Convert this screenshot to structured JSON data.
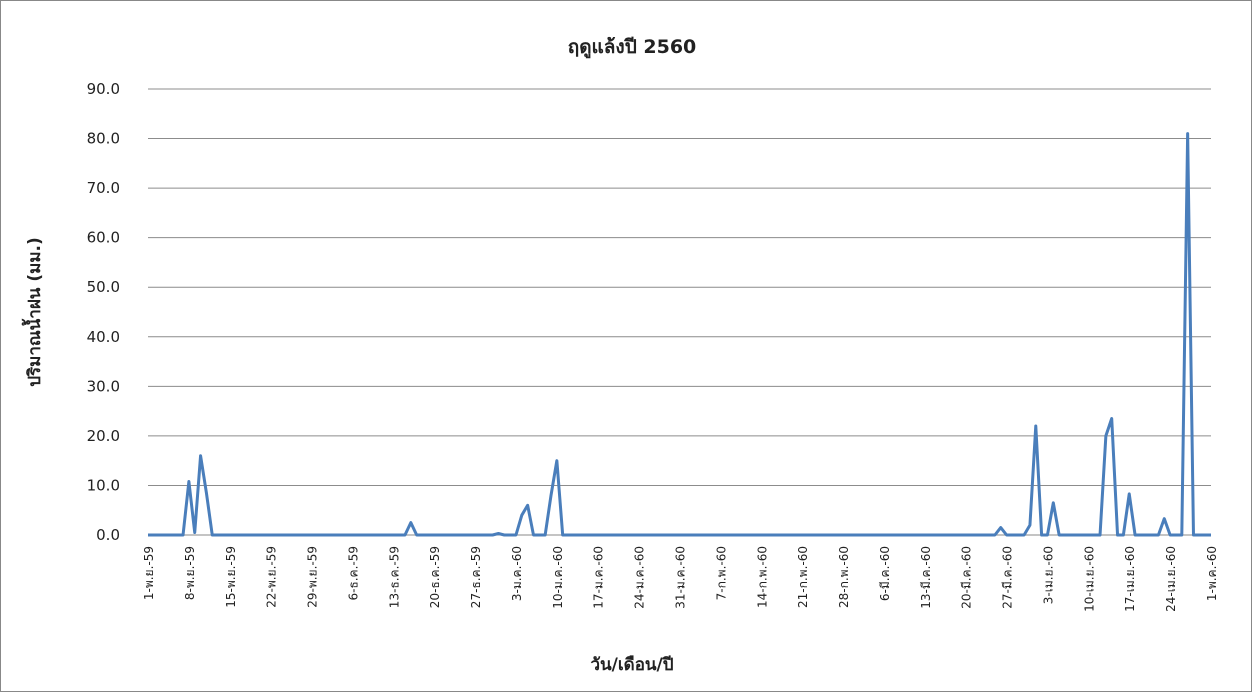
{
  "chart_data": {
    "type": "line",
    "title": "ฤดูแล้งปี 2560",
    "xlabel": "วัน/เดือน/ปี",
    "ylabel": "ปริมาณน้ำฝน (มม.)",
    "categories": [
      "1-พ.ย.-59",
      null,
      null,
      null,
      null,
      null,
      null,
      "8-พ.ย.-59",
      null,
      null,
      null,
      null,
      null,
      null,
      "15-พ.ย.-59",
      null,
      null,
      null,
      null,
      null,
      null,
      "22-พ.ย.-59",
      null,
      null,
      null,
      null,
      null,
      null,
      "29-พ.ย.-59",
      null,
      null,
      null,
      null,
      null,
      null,
      "6-ธ.ค.-59",
      null,
      null,
      null,
      null,
      null,
      null,
      "13-ธ.ค.-59",
      null,
      null,
      null,
      null,
      null,
      null,
      "20-ธ.ค.-59",
      null,
      null,
      null,
      null,
      null,
      null,
      "27-ธ.ค.-59",
      null,
      null,
      null,
      null,
      null,
      null,
      "3-ม.ค.-60",
      null,
      null,
      null,
      null,
      null,
      null,
      "10-ม.ค.-60",
      null,
      null,
      null,
      null,
      null,
      null,
      "17-ม.ค.-60",
      null,
      null,
      null,
      null,
      null,
      null,
      "24-ม.ค.-60",
      null,
      null,
      null,
      null,
      null,
      null,
      "31-ม.ค.-60",
      null,
      null,
      null,
      null,
      null,
      null,
      "7-ก.พ.-60",
      null,
      null,
      null,
      null,
      null,
      null,
      "14-ก.พ.-60",
      null,
      null,
      null,
      null,
      null,
      null,
      "21-ก.พ.-60",
      null,
      null,
      null,
      null,
      null,
      null,
      "28-ก.พ.-60",
      null,
      null,
      null,
      null,
      null,
      null,
      "6-มี.ค.-60",
      null,
      null,
      null,
      null,
      null,
      null,
      "13-มี.ค.-60",
      null,
      null,
      null,
      null,
      null,
      null,
      "20-มี.ค.-60",
      null,
      null,
      null,
      null,
      null,
      null,
      "27-มี.ค.-60",
      null,
      null,
      null,
      null,
      null,
      null,
      "3-เม.ย.-60",
      null,
      null,
      null,
      null,
      null,
      null,
      "10-เม.ย.-60",
      null,
      null,
      null,
      null,
      null,
      null,
      "17-เม.ย.-60",
      null,
      null,
      null,
      null,
      null,
      null,
      "24-เม.ย.-60",
      null,
      null,
      null,
      null,
      null,
      null,
      "1-พ.ค.-60"
    ],
    "series": [
      {
        "color": "#4a7ebb",
        "values": [
          0,
          0,
          0,
          0,
          0,
          0,
          0,
          10.8,
          0.5,
          16,
          8.5,
          0,
          0,
          0,
          0,
          0,
          0,
          0,
          0,
          0,
          0,
          0,
          0,
          0,
          0,
          0,
          0,
          0,
          0,
          0,
          0,
          0,
          0,
          0,
          0,
          0,
          0,
          0,
          0,
          0,
          0,
          0,
          0,
          0,
          0,
          2.5,
          0,
          0,
          0,
          0,
          0,
          0,
          0,
          0,
          0,
          0,
          0,
          0,
          0,
          0,
          0.3,
          0,
          0,
          0,
          4,
          6,
          0,
          0,
          0,
          8,
          15,
          0,
          0,
          0,
          0,
          0,
          0,
          0,
          0,
          0,
          0,
          0,
          0,
          0,
          0,
          0,
          0,
          0,
          0,
          0,
          0,
          0,
          0,
          0,
          0,
          0,
          0,
          0,
          0,
          0,
          0,
          0,
          0,
          0,
          0,
          0,
          0,
          0,
          0,
          0,
          0,
          0,
          0,
          0,
          0,
          0,
          0,
          0,
          0,
          0,
          0,
          0,
          0,
          0,
          0,
          0,
          0,
          0,
          0,
          0,
          0,
          0,
          0,
          0,
          0,
          0,
          0,
          0,
          0,
          0,
          0,
          0,
          0,
          0,
          0,
          0,
          1.5,
          0,
          0,
          0,
          0,
          2,
          22,
          0,
          0,
          6.5,
          0,
          0,
          0,
          0,
          0,
          0,
          0,
          0,
          20,
          23.5,
          0,
          0,
          8.3,
          0,
          0,
          0,
          0,
          0,
          3.3,
          0,
          0,
          0,
          81,
          0,
          0,
          0,
          0
        ]
      }
    ],
    "ylim": [
      0,
      90
    ],
    "yticks": [
      {
        "value": 0,
        "label": "0.0"
      },
      {
        "value": 10,
        "label": "10.0"
      },
      {
        "value": 20,
        "label": "20.0"
      },
      {
        "value": 30,
        "label": "30.0"
      },
      {
        "value": 40,
        "label": "40.0"
      },
      {
        "value": 50,
        "label": "50.0"
      },
      {
        "value": 60,
        "label": "60.0"
      },
      {
        "value": 70,
        "label": "70.0"
      },
      {
        "value": 80,
        "label": "80.0"
      },
      {
        "value": 90,
        "label": "90.0"
      }
    ],
    "grid": true
  }
}
